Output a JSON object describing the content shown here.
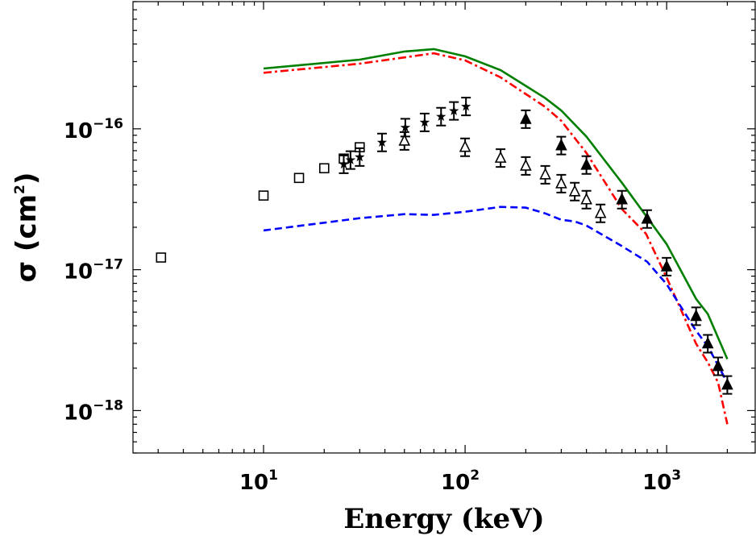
{
  "chart_data": {
    "type": "scatter",
    "title": "",
    "xlabel": "Energy (keV)",
    "ylabel_base": "σ (cm",
    "ylabel_sup": "2",
    "ylabel_end": ")",
    "xscale": "log",
    "yscale": "log",
    "xlim": [
      2.25,
      2750
    ],
    "ylim": [
      5e-19,
      8e-16
    ],
    "grid": false,
    "xticks": [
      {
        "base": "10",
        "exp": "1",
        "value": 10
      },
      {
        "base": "10",
        "exp": "2",
        "value": 100
      },
      {
        "base": "10",
        "exp": "3",
        "value": 1000
      }
    ],
    "yticks": [
      {
        "base": "10",
        "exp": "−16",
        "value": 1e-16
      },
      {
        "base": "10",
        "exp": "−17",
        "value": 1e-17
      },
      {
        "base": "10",
        "exp": "−18",
        "value": 1e-18
      }
    ],
    "lines": [
      {
        "color": "#007f00",
        "style": "solid",
        "x": [
          10,
          30,
          50,
          70,
          100,
          150,
          250,
          300,
          400,
          600,
          1000,
          1400,
          1600,
          2000
        ],
        "y": [
          2.68e-16,
          3.1e-16,
          3.54e-16,
          3.68e-16,
          3.27e-16,
          2.61e-16,
          1.65e-16,
          1.35e-16,
          8.8e-17,
          4.14e-17,
          1.52e-17,
          6.2e-18,
          4.85e-18,
          2.32e-18
        ]
      },
      {
        "color": "#ff0000",
        "style": "dashdot",
        "x": [
          10,
          30,
          70,
          100,
          150,
          250,
          300,
          400,
          600,
          790,
          1000,
          1400,
          1600,
          1800,
          2000
        ],
        "y": [
          2.5e-16,
          2.9e-16,
          3.44e-16,
          3.06e-16,
          2.32e-16,
          1.43e-16,
          1.14e-16,
          6.74e-17,
          2.69e-17,
          1.8e-17,
          8.8e-18,
          2.98e-18,
          2.2e-18,
          1.58e-18,
          8e-19
        ]
      },
      {
        "color": "#0000ff",
        "style": "dashed",
        "x": [
          10,
          30,
          50,
          70,
          100,
          150,
          200,
          250,
          300,
          350,
          400,
          600,
          800,
          1000,
          1400,
          1600,
          2000
        ],
        "y": [
          1.9e-17,
          2.32e-17,
          2.48e-17,
          2.45e-17,
          2.58e-17,
          2.79e-17,
          2.76e-17,
          2.51e-17,
          2.26e-17,
          2.2e-17,
          2.06e-17,
          1.47e-17,
          1.14e-17,
          7.9e-18,
          3.68e-18,
          2.86e-18,
          1.58e-18
        ]
      }
    ],
    "markers": [
      {
        "marker": "open-square",
        "errorbars": false,
        "x": [
          3.1,
          10,
          15,
          20,
          25,
          30
        ],
        "y": [
          1.22e-17,
          3.36e-17,
          4.48e-17,
          5.25e-17,
          6.15e-17,
          7.4e-17
        ]
      },
      {
        "marker": "filled-star",
        "errorbars": true,
        "x": [
          25,
          27,
          30,
          38.7,
          50.5,
          63,
          76,
          88,
          101
        ],
        "y": [
          5.6e-17,
          6e-17,
          6.3e-17,
          8e-17,
          1.02e-16,
          1.11e-16,
          1.22e-16,
          1.34e-16,
          1.44e-16
        ]
      },
      {
        "marker": "open-triangle",
        "errorbars": true,
        "x": [
          50,
          100,
          150,
          200,
          250,
          300,
          350,
          400,
          470
        ],
        "y": [
          8.2e-17,
          7.4e-17,
          6.2e-17,
          5.45e-17,
          4.72e-17,
          4.08e-17,
          3.58e-17,
          3.14e-17,
          2.51e-17
        ]
      },
      {
        "marker": "filled-triangle",
        "errorbars": true,
        "x": [
          200,
          300,
          400,
          600,
          800,
          1000,
          1400,
          1600,
          1800,
          2000
        ],
        "y": [
          1.17e-16,
          7.6e-17,
          5.53e-17,
          3.14e-17,
          2.29e-17,
          1.05e-17,
          4.67e-18,
          2.98e-18,
          2.06e-18,
          1.52e-18
        ]
      }
    ]
  }
}
